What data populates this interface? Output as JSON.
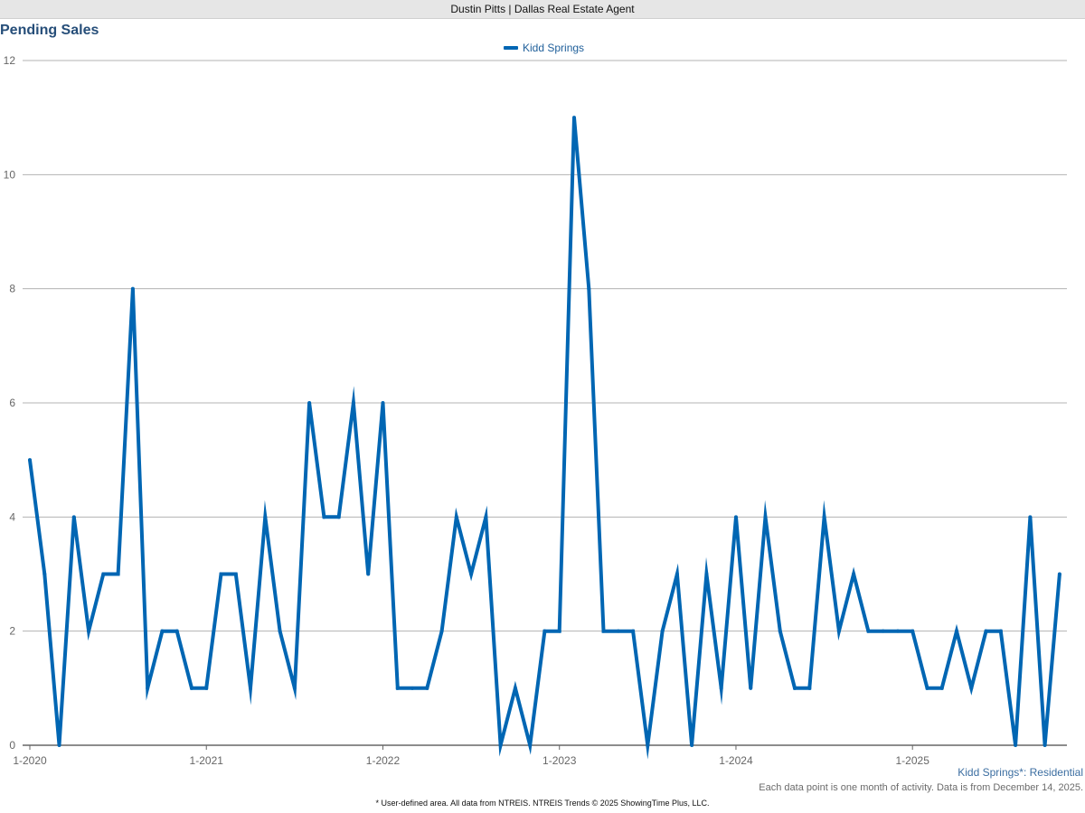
{
  "header": {
    "title": "Dustin Pitts | Dallas Real Estate Agent"
  },
  "chart_data": {
    "type": "line",
    "title": "Pending Sales",
    "xlabel": "",
    "ylabel": "",
    "ylim": [
      0,
      12
    ],
    "y_ticks": [
      "0",
      "2",
      "4",
      "6",
      "8",
      "10",
      "12"
    ],
    "x_tick_labels": [
      "1-2020",
      "1-2021",
      "1-2022",
      "1-2023",
      "1-2024",
      "1-2025"
    ],
    "grid": true,
    "legend_position": "top-center",
    "series": [
      {
        "name": "Kidd Springs",
        "color": "#0066b3",
        "x_start": "2020-01",
        "values": [
          5,
          3,
          0,
          4,
          2,
          3,
          3,
          8,
          1,
          2,
          2,
          1,
          1,
          3,
          3,
          1,
          4,
          2,
          1,
          6,
          4,
          4,
          6,
          3,
          6,
          1,
          1,
          1,
          2,
          4,
          3,
          4,
          0,
          1,
          0,
          2,
          2,
          11,
          8,
          2,
          2,
          2,
          0,
          2,
          3,
          0,
          3,
          1,
          4,
          1,
          4,
          2,
          1,
          1,
          4,
          2,
          3,
          2,
          2,
          2,
          2,
          1,
          1,
          2,
          1,
          2,
          2,
          0,
          4,
          0,
          3
        ]
      }
    ]
  },
  "notes": {
    "area_label": "Kidd Springs*: Residential",
    "data_note": "Each data point is one month of activity. Data is from December 14, 2025.",
    "footer": "* User-defined area. All data from NTREIS. NTREIS Trends © 2025 ShowingTime Plus, LLC."
  }
}
